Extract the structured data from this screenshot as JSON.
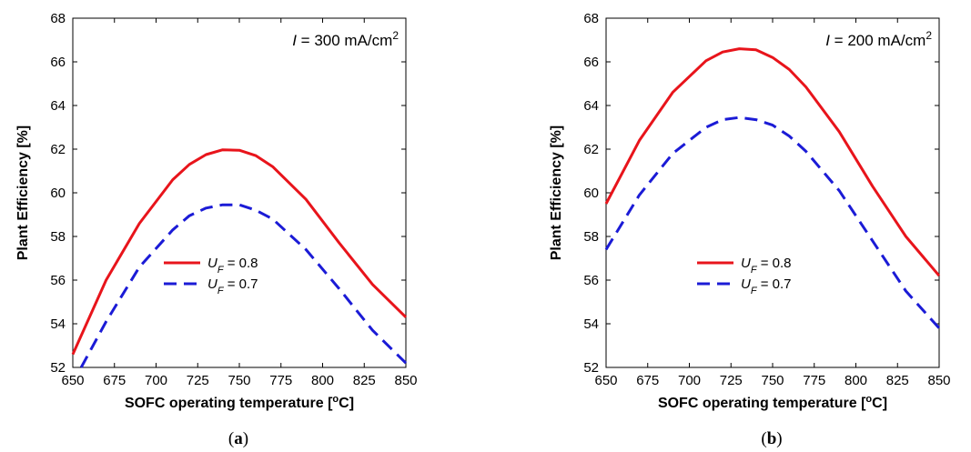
{
  "chart_data": [
    {
      "type": "line",
      "panel_label": "a",
      "annotation": {
        "var": "I",
        "text": " = 300 mA/cm",
        "sup": "2"
      },
      "xlabel": {
        "pre": "SOFC operating temperature [",
        "sup": "o",
        "post": "C]"
      },
      "ylabel": "Plant Efficiency [%]",
      "xlim": [
        650,
        850
      ],
      "ylim": [
        52,
        68
      ],
      "xticks": [
        "650",
        "675",
        "700",
        "725",
        "750",
        "775",
        "800",
        "825",
        "850"
      ],
      "yticks": [
        "52",
        "54",
        "56",
        "58",
        "60",
        "62",
        "64",
        "66",
        "68"
      ],
      "grid": false,
      "legend_position": "lower-center",
      "series": [
        {
          "legend": {
            "var": "U",
            "sub": "F",
            "rest": " = 0.8"
          },
          "color": "#e8141b",
          "style": "solid",
          "x": [
            650,
            670,
            690,
            710,
            720,
            730,
            740,
            750,
            760,
            770,
            790,
            810,
            830,
            850
          ],
          "y": [
            52.6,
            56.0,
            58.6,
            60.6,
            61.3,
            61.75,
            61.97,
            61.95,
            61.7,
            61.2,
            59.7,
            57.7,
            55.8,
            54.3
          ]
        },
        {
          "legend": {
            "var": "U",
            "sub": "F",
            "rest": " = 0.7"
          },
          "color": "#1b1bd6",
          "style": "dashed",
          "x": [
            655,
            670,
            690,
            710,
            720,
            730,
            740,
            750,
            760,
            770,
            790,
            810,
            830,
            850
          ],
          "y": [
            52.0,
            54.1,
            56.6,
            58.3,
            58.95,
            59.3,
            59.45,
            59.45,
            59.2,
            58.8,
            57.4,
            55.6,
            53.7,
            52.2
          ]
        }
      ]
    },
    {
      "type": "line",
      "panel_label": "b",
      "annotation": {
        "var": "I",
        "text": " = 200 mA/cm",
        "sup": "2"
      },
      "xlabel": {
        "pre": "SOFC operating temperature [",
        "sup": "o",
        "post": "C]"
      },
      "ylabel": "Plant Efficiency [%]",
      "xlim": [
        650,
        850
      ],
      "ylim": [
        52,
        68
      ],
      "xticks": [
        "650",
        "675",
        "700",
        "725",
        "750",
        "775",
        "800",
        "825",
        "850"
      ],
      "yticks": [
        "52",
        "54",
        "56",
        "58",
        "60",
        "62",
        "64",
        "66",
        "68"
      ],
      "grid": false,
      "legend_position": "lower-center",
      "series": [
        {
          "legend": {
            "var": "U",
            "sub": "F",
            "rest": " = 0.8"
          },
          "color": "#e8141b",
          "style": "solid",
          "x": [
            650,
            670,
            690,
            710,
            720,
            730,
            740,
            750,
            760,
            770,
            790,
            810,
            830,
            850
          ],
          "y": [
            59.5,
            62.4,
            64.6,
            66.05,
            66.45,
            66.6,
            66.55,
            66.2,
            65.65,
            64.85,
            62.8,
            60.3,
            58.0,
            56.2
          ]
        },
        {
          "legend": {
            "var": "U",
            "sub": "F",
            "rest": " = 0.7"
          },
          "color": "#1b1bd6",
          "style": "dashed",
          "x": [
            650,
            670,
            690,
            710,
            720,
            730,
            740,
            750,
            760,
            770,
            790,
            810,
            830,
            850
          ],
          "y": [
            57.4,
            59.9,
            61.8,
            63.0,
            63.35,
            63.45,
            63.35,
            63.1,
            62.6,
            61.9,
            60.1,
            57.8,
            55.5,
            53.8
          ]
        }
      ]
    }
  ]
}
